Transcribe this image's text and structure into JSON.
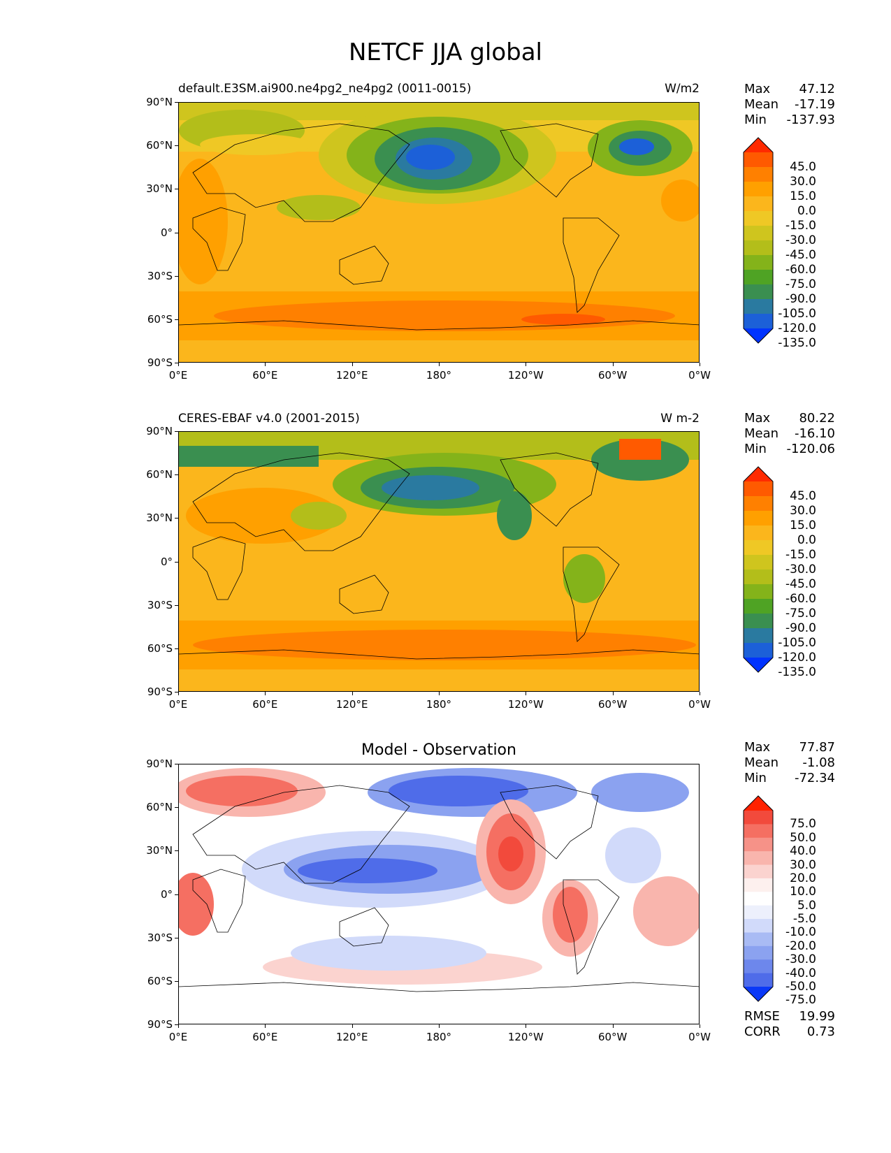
{
  "title": "NETCF JJA global",
  "axes": {
    "lat_labels": [
      "90°N",
      "60°N",
      "30°N",
      "0°",
      "30°S",
      "60°S",
      "90°S"
    ],
    "lon_labels": [
      "0°E",
      "60°E",
      "120°E",
      "180°",
      "120°W",
      "60°W",
      "0°W"
    ]
  },
  "panels": [
    {
      "left_title": "default.E3SM.ai900.ne4pg2_ne4pg2 (0011-0015)",
      "right_title": "W/m2",
      "stats": {
        "max_label": "Max",
        "max": "47.12",
        "mean_label": "Mean",
        "mean": "-17.19",
        "min_label": "Min",
        "min": "-137.93"
      },
      "colorbar_labels": [
        "45.0",
        "30.0",
        "15.0",
        "0.0",
        "-15.0",
        "-30.0",
        "-45.0",
        "-60.0",
        "-75.0",
        "-90.0",
        "-105.0",
        "-120.0",
        "-135.0"
      ]
    },
    {
      "left_title": "CERES-EBAF v4.0 (2001-2015)",
      "right_title": "W m-2",
      "stats": {
        "max_label": "Max",
        "max": "80.22",
        "mean_label": "Mean",
        "mean": "-16.10",
        "min_label": "Min",
        "min": "-120.06"
      },
      "colorbar_labels": [
        "45.0",
        "30.0",
        "15.0",
        "0.0",
        "-15.0",
        "-30.0",
        "-45.0",
        "-60.0",
        "-75.0",
        "-90.0",
        "-105.0",
        "-120.0",
        "-135.0"
      ]
    },
    {
      "center_title": "Model - Observation",
      "stats": {
        "max_label": "Max",
        "max": "77.87",
        "mean_label": "Mean",
        "mean": "-1.08",
        "min_label": "Min",
        "min": "-72.34"
      },
      "colorbar_labels": [
        "75.0",
        "50.0",
        "40.0",
        "30.0",
        "20.0",
        "10.0",
        "5.0",
        "-5.0",
        "-10.0",
        "-20.0",
        "-30.0",
        "-40.0",
        "-50.0",
        "-75.0"
      ],
      "metrics": {
        "rmse_label": "RMSE",
        "rmse": "19.99",
        "corr_label": "CORR",
        "corr": "0.73"
      }
    }
  ],
  "colors": {
    "abs_scale": [
      "#ff2a00",
      "#ff5a00",
      "#ff8000",
      "#ffa000",
      "#fbb61c",
      "#efc825",
      "#cfc51e",
      "#b3be1a",
      "#84b31a",
      "#4fa324",
      "#3a8f50",
      "#2a7aa0",
      "#1c60d8",
      "#0033ff"
    ],
    "diff_scale": [
      "#ff2200",
      "#f24a3c",
      "#f56f62",
      "#f69288",
      "#f9b5ad",
      "#fbd3cf",
      "#fdf0ee",
      "#ffffff",
      "#edf0fc",
      "#d1dafa",
      "#a9bbf4",
      "#8ba2f0",
      "#6d87ec",
      "#4f6ce9",
      "#0a38f7"
    ]
  }
}
